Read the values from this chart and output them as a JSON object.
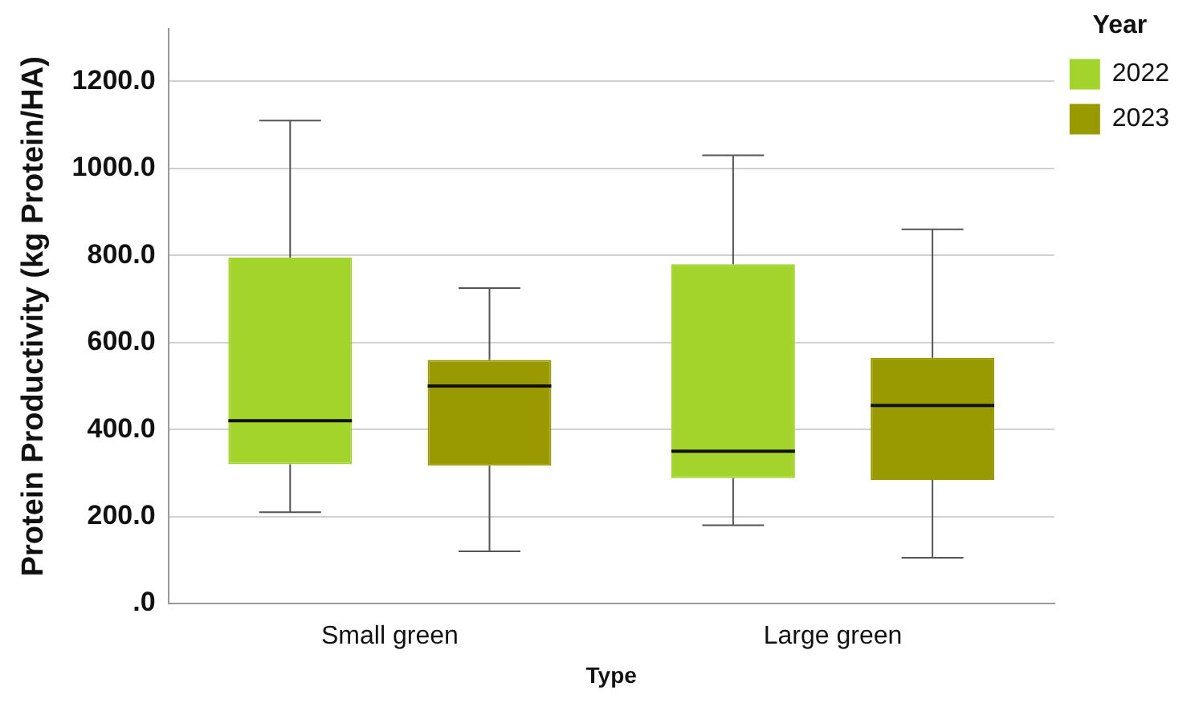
{
  "chart_data": {
    "type": "box",
    "xlabel": "Type",
    "ylabel": "Protein Productivity (kg Protein/HA)",
    "legend_title": "Year",
    "categories": [
      "Small green",
      "Large green"
    ],
    "series": [
      {
        "name": "2022",
        "color": "#a2d42b",
        "boxes": [
          {
            "low": 210,
            "q1": 320,
            "median": 420,
            "q3": 795,
            "high": 1110
          },
          {
            "low": 180,
            "q1": 288,
            "median": 350,
            "q3": 780,
            "high": 1030
          }
        ]
      },
      {
        "name": "2023",
        "color": "#999a00",
        "boxes": [
          {
            "low": 120,
            "q1": 317,
            "median": 500,
            "q3": 560,
            "high": 725
          },
          {
            "low": 105,
            "q1": 284,
            "median": 455,
            "q3": 565,
            "high": 860
          }
        ]
      }
    ],
    "ylim": [
      0,
      1320
    ],
    "yticks": [
      {
        "value": 0,
        "label": ".0"
      },
      {
        "value": 200,
        "label": "200.0"
      },
      {
        "value": 400,
        "label": "400.0"
      },
      {
        "value": 600,
        "label": "600.0"
      },
      {
        "value": 800,
        "label": "800.0"
      },
      {
        "value": 1000,
        "label": "1000.0"
      },
      {
        "value": 1200,
        "label": "1200.0"
      }
    ],
    "grid": "y",
    "legend": "top right"
  }
}
